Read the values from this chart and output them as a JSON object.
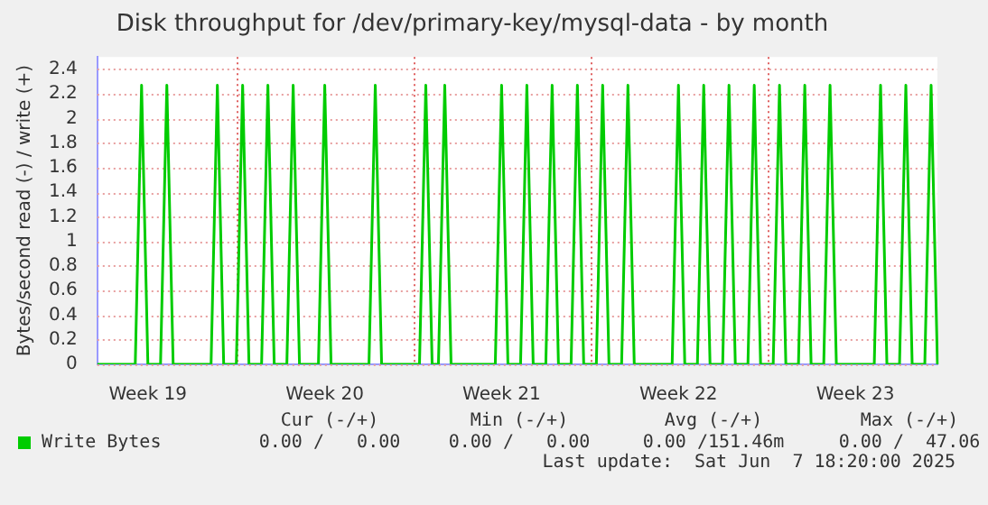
{
  "chart_data": {
    "type": "line",
    "title": "Disk throughput for /dev/primary-key/mysql-data - by month",
    "ylabel": "Bytes/second read (-) / write (+)",
    "categories": [
      null,
      null,
      null,
      null,
      null,
      null,
      null,
      null,
      "Week 19",
      null,
      null,
      null,
      null,
      null,
      null,
      null,
      null,
      null,
      null,
      null,
      null,
      null,
      null,
      null,
      null,
      null,
      null,
      null,
      null,
      null,
      null,
      null,
      null,
      null,
      null,
      null,
      "Week 20",
      null,
      null,
      null,
      null,
      null,
      null,
      null,
      null,
      null,
      null,
      null,
      null,
      null,
      null,
      null,
      null,
      null,
      null,
      null,
      null,
      null,
      null,
      null,
      null,
      null,
      null,
      null,
      "Week 21",
      null,
      null,
      null,
      null,
      null,
      null,
      null,
      null,
      null,
      null,
      null,
      null,
      null,
      null,
      null,
      null,
      null,
      null,
      null,
      null,
      null,
      null,
      null,
      null,
      null,
      null,
      null,
      "Week 22",
      null,
      null,
      null,
      null,
      null,
      null,
      null,
      null,
      null,
      null,
      null,
      null,
      null,
      null,
      null,
      null,
      null,
      null,
      null,
      null,
      null,
      null,
      null,
      null,
      null,
      null,
      null,
      "Week 23",
      null,
      null,
      null,
      null,
      null,
      null,
      null,
      null,
      null,
      null,
      null,
      null,
      null
    ],
    "series": [
      {
        "name": "Write Bytes",
        "color": "#00cc00",
        "values": [
          0,
          0,
          0,
          0,
          0,
          0,
          0,
          2.27,
          0,
          0,
          0,
          2.27,
          0,
          0,
          0,
          0,
          0,
          0,
          0,
          2.27,
          0,
          0,
          0,
          2.27,
          0,
          0,
          0,
          2.27,
          0,
          0,
          0,
          2.27,
          0,
          0,
          0,
          0,
          2.27,
          0,
          0,
          0,
          0,
          0,
          0,
          0,
          2.27,
          0,
          0,
          0,
          0,
          0,
          0,
          0,
          2.27,
          0,
          0,
          2.27,
          0,
          0,
          0,
          0,
          0,
          0,
          0,
          0,
          2.27,
          0,
          0,
          0,
          2.27,
          0,
          0,
          0,
          2.27,
          0,
          0,
          0,
          2.27,
          0,
          0,
          0,
          2.27,
          0,
          0,
          0,
          2.27,
          0,
          0,
          0,
          0,
          0,
          0,
          0,
          2.27,
          0,
          0,
          0,
          2.27,
          0,
          0,
          0,
          2.27,
          0,
          0,
          0,
          2.27,
          0,
          0,
          0,
          2.27,
          0,
          0,
          0,
          2.27,
          0,
          0,
          0,
          2.27,
          0,
          0,
          0,
          0,
          0,
          0,
          0,
          2.27,
          0,
          0,
          0,
          2.27,
          0,
          0,
          0,
          2.27,
          0
        ]
      }
    ],
    "ylim": [
      0,
      2.5
    ],
    "yticks": [
      0,
      0.2,
      0.4,
      0.6,
      0.8,
      1.0,
      1.2,
      1.4,
      1.6,
      1.8,
      2.0,
      2.2,
      2.4
    ],
    "grid": true,
    "legend": "bottom left",
    "marker": "none",
    "line_style": "solid",
    "annotations": [
      "Cur (-/+)",
      "Min (-/+)",
      "Avg (-/+)",
      "Max (-/+)",
      "0.00 /   0.00",
      "0.00 /   0.00",
      "0.00 /151.46m",
      "0.00 /  47.06",
      "Last update:  Sat Jun  7 18:20:00 2025"
    ]
  }
}
